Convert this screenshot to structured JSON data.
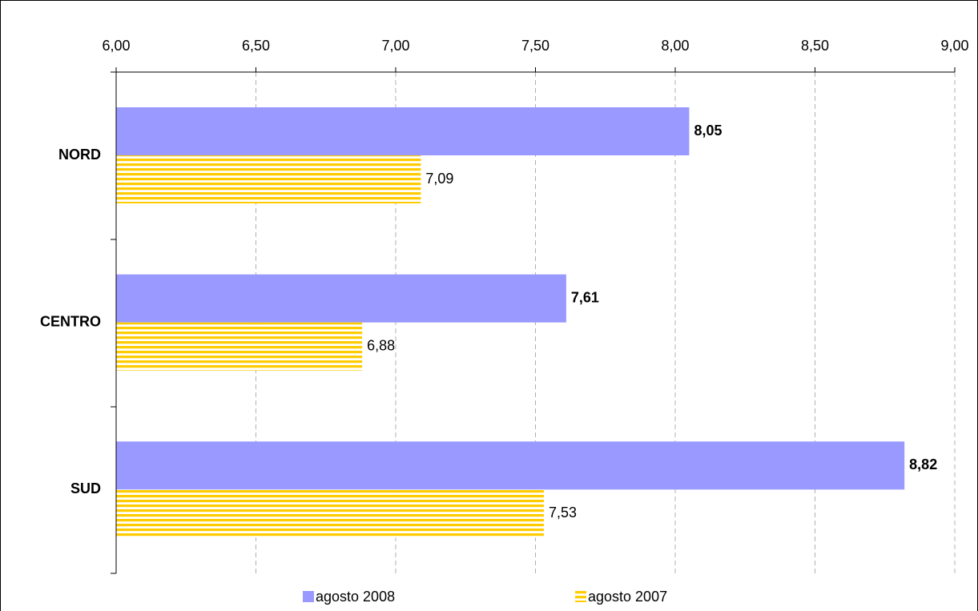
{
  "chart_data": {
    "type": "bar",
    "orientation": "horizontal",
    "categories": [
      "NORD",
      "CENTRO",
      "SUD"
    ],
    "series": [
      {
        "name": "agosto 2008",
        "color": "#9999ff",
        "values": [
          8.05,
          7.61,
          8.82
        ],
        "value_labels": [
          "8,05",
          "7,61",
          "8,82"
        ]
      },
      {
        "name": "agosto 2007",
        "color": "#ffcc00",
        "pattern": "horizontal-stripes",
        "values": [
          7.09,
          6.88,
          7.53
        ],
        "value_labels": [
          "7,09",
          "6,88",
          "7,53"
        ]
      }
    ],
    "xlim": [
      6,
      9
    ],
    "xticks": [
      {
        "value": 6,
        "label": "6,00"
      },
      {
        "value": 6.5,
        "label": "6,50"
      },
      {
        "value": 7,
        "label": "7,00"
      },
      {
        "value": 7.5,
        "label": "7,50"
      },
      {
        "value": 8,
        "label": "8,00"
      },
      {
        "value": 8.5,
        "label": "8,50"
      },
      {
        "value": 9,
        "label": "9,00"
      }
    ],
    "grid": true,
    "legend": "bottom"
  }
}
